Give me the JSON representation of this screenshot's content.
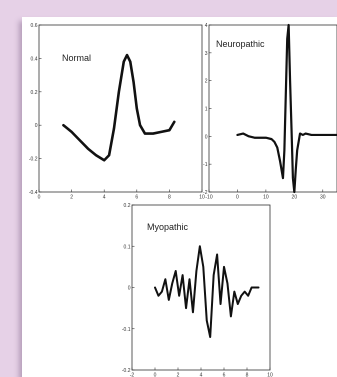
{
  "chart_data": [
    {
      "type": "line",
      "title": "Normal",
      "xlim": [
        0,
        10
      ],
      "ylim": [
        -0.4,
        0.6
      ],
      "xticks": [
        "0",
        "2",
        "4",
        "6",
        "8",
        "10"
      ],
      "yticks": [
        "-0.4",
        "-0.2",
        "0",
        "0.2",
        "0.4",
        "0.6"
      ],
      "series": [
        {
          "x": [
            1.5,
            2.0,
            2.5,
            3.0,
            3.5,
            4.0,
            4.3,
            4.6,
            4.9,
            5.2,
            5.4,
            5.6,
            5.8,
            6.0,
            6.2,
            6.5,
            7.0,
            7.5,
            8.0,
            8.3
          ],
          "y": [
            0.0,
            -0.04,
            -0.09,
            -0.14,
            -0.18,
            -0.21,
            -0.18,
            -0.02,
            0.2,
            0.38,
            0.42,
            0.38,
            0.26,
            0.1,
            0.0,
            -0.05,
            -0.05,
            -0.04,
            -0.03,
            0.02
          ]
        }
      ]
    },
    {
      "type": "line",
      "title": "Neuropathic",
      "xlim": [
        -10,
        35
      ],
      "ylim": [
        -2,
        4
      ],
      "xticks": [
        "-10",
        "0",
        "10",
        "20",
        "30"
      ],
      "yticks": [
        "-2",
        "-1",
        "0",
        "1",
        "2",
        "3",
        "4"
      ],
      "series": [
        {
          "x": [
            0,
            2,
            4,
            6,
            8,
            10,
            12,
            13,
            14,
            15,
            16,
            16.5,
            17,
            17.5,
            18,
            18.5,
            19,
            19.5,
            20,
            20.5,
            21,
            21.5,
            22,
            23,
            24,
            26,
            28,
            30,
            32,
            35
          ],
          "y": [
            0.05,
            0.1,
            0.0,
            -0.05,
            -0.05,
            -0.05,
            -0.1,
            -0.2,
            -0.4,
            -0.9,
            -1.5,
            -0.5,
            1.5,
            3.5,
            4.0,
            2.0,
            0.3,
            -1.5,
            -2.0,
            -1.2,
            -0.5,
            -0.2,
            0.1,
            0.05,
            0.1,
            0.05,
            0.05,
            0.05,
            0.05,
            0.05
          ]
        }
      ]
    },
    {
      "type": "line",
      "title": "Myopathic",
      "xlim": [
        -2,
        10
      ],
      "ylim": [
        -0.2,
        0.2
      ],
      "xticks": [
        "-2",
        "0",
        "2",
        "4",
        "6",
        "8",
        "10"
      ],
      "yticks": [
        "-0.2",
        "-0.1",
        "0",
        "0.1",
        "0.2"
      ],
      "series": [
        {
          "x": [
            0.0,
            0.3,
            0.6,
            0.9,
            1.2,
            1.5,
            1.8,
            2.1,
            2.4,
            2.7,
            3.0,
            3.3,
            3.6,
            3.9,
            4.2,
            4.5,
            4.8,
            5.1,
            5.4,
            5.7,
            6.0,
            6.3,
            6.6,
            6.9,
            7.2,
            7.5,
            7.8,
            8.1,
            8.4,
            8.7,
            9.0
          ],
          "y": [
            0.0,
            -0.02,
            -0.01,
            0.02,
            -0.03,
            0.01,
            0.04,
            -0.02,
            0.03,
            -0.05,
            0.02,
            -0.06,
            0.04,
            0.1,
            0.05,
            -0.08,
            -0.12,
            0.03,
            0.08,
            -0.04,
            0.05,
            0.01,
            -0.07,
            -0.01,
            -0.04,
            -0.02,
            -0.01,
            -0.02,
            0.0,
            0.0,
            0.0
          ]
        }
      ]
    }
  ]
}
